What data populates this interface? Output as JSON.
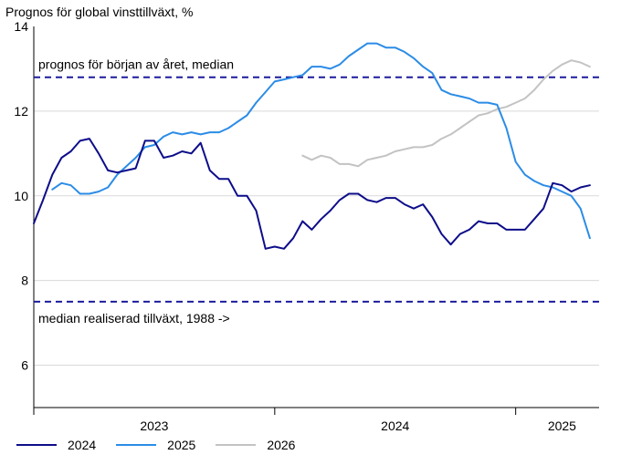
{
  "chart_data": {
    "type": "line",
    "title": "Prognos för global vinsttillväxt, %",
    "ylim": [
      5,
      14
    ],
    "yticks": [
      6,
      8,
      10,
      12,
      14
    ],
    "xlim": [
      0,
      30.5
    ],
    "x_category_labels": [
      "2023",
      "2024",
      "2025"
    ],
    "x_label_positions": [
      6.5,
      19.5,
      28.5
    ],
    "x_year_boundaries": [
      0,
      13,
      26
    ],
    "reference_lines": [
      {
        "name": "start-of-year-median",
        "value": 12.8,
        "label": "prognos för början av året, median",
        "color": "#1c1c9e"
      },
      {
        "name": "realized-median",
        "value": 7.5,
        "label": "median realiserad tillväxt, 1988 ->",
        "color": "#1c1c9e"
      }
    ],
    "series": [
      {
        "name": "2024",
        "color": "#0d0d8a",
        "x": [
          0,
          0.5,
          1,
          1.5,
          2,
          2.5,
          3,
          3.5,
          4,
          4.5,
          5,
          5.5,
          6,
          6.5,
          7,
          7.5,
          8,
          8.5,
          9,
          9.5,
          10,
          10.5,
          11,
          11.5,
          12,
          12.5,
          13,
          13.5,
          14,
          14.5,
          15,
          15.5,
          16,
          16.5,
          17,
          17.5,
          18,
          18.5,
          19,
          19.5,
          20,
          20.5,
          21,
          21.5,
          22,
          22.5,
          23,
          23.5,
          24,
          24.5,
          25,
          25.5,
          26,
          26.5,
          27,
          27.5,
          28,
          28.5,
          29,
          29.5,
          30
        ],
        "y": [
          9.35,
          9.9,
          10.5,
          10.9,
          11.05,
          11.3,
          11.35,
          11.0,
          10.6,
          10.55,
          10.6,
          10.65,
          11.3,
          11.3,
          10.9,
          10.95,
          11.05,
          11.0,
          11.25,
          10.6,
          10.4,
          10.4,
          10.0,
          10.0,
          9.65,
          8.75,
          8.8,
          8.75,
          9.0,
          9.4,
          9.2,
          9.45,
          9.65,
          9.9,
          10.05,
          10.05,
          9.9,
          9.85,
          9.95,
          9.95,
          9.8,
          9.7,
          9.8,
          9.5,
          9.1,
          8.85,
          9.1,
          9.2,
          9.4,
          9.35,
          9.35,
          9.2,
          9.2,
          9.2,
          9.45,
          9.7,
          10.3,
          10.25,
          10.1,
          10.2,
          10.25
        ]
      },
      {
        "name": "2025",
        "color": "#2b8ce6",
        "x": [
          1,
          1.5,
          2,
          2.5,
          3,
          3.5,
          4,
          4.5,
          5,
          5.5,
          6,
          6.5,
          7,
          7.5,
          8,
          8.5,
          9,
          9.5,
          10,
          10.5,
          11,
          11.5,
          12,
          12.5,
          13,
          13.5,
          14,
          14.5,
          15,
          15.5,
          16,
          16.5,
          17,
          17.5,
          18,
          18.5,
          19,
          19.5,
          20,
          20.5,
          21,
          21.5,
          22,
          22.5,
          23,
          23.5,
          24,
          24.5,
          25,
          25.5,
          26,
          26.5,
          27,
          27.5,
          28,
          28.5,
          29,
          29.5,
          30
        ],
        "y": [
          10.15,
          10.3,
          10.25,
          10.05,
          10.05,
          10.1,
          10.2,
          10.5,
          10.7,
          10.9,
          11.15,
          11.2,
          11.4,
          11.5,
          11.45,
          11.5,
          11.45,
          11.5,
          11.5,
          11.6,
          11.75,
          11.9,
          12.2,
          12.45,
          12.7,
          12.75,
          12.8,
          12.85,
          13.05,
          13.05,
          13.0,
          13.1,
          13.3,
          13.45,
          13.6,
          13.6,
          13.5,
          13.5,
          13.4,
          13.25,
          13.05,
          12.9,
          12.5,
          12.4,
          12.35,
          12.3,
          12.2,
          12.2,
          12.15,
          11.6,
          10.8,
          10.5,
          10.35,
          10.25,
          10.2,
          10.1,
          10.0,
          9.7,
          9.0
        ]
      },
      {
        "name": "2026",
        "color": "#c3c3c3",
        "x": [
          14.5,
          15,
          15.5,
          16,
          16.5,
          17,
          17.5,
          18,
          18.5,
          19,
          19.5,
          20,
          20.5,
          21,
          21.5,
          22,
          22.5,
          23,
          23.5,
          24,
          24.5,
          25,
          25.5,
          26,
          26.5,
          27,
          27.5,
          28,
          28.5,
          29,
          29.5,
          30
        ],
        "y": [
          10.95,
          10.85,
          10.95,
          10.9,
          10.75,
          10.75,
          10.7,
          10.85,
          10.9,
          10.95,
          11.05,
          11.1,
          11.15,
          11.15,
          11.2,
          11.35,
          11.45,
          11.6,
          11.75,
          11.9,
          11.95,
          12.05,
          12.1,
          12.2,
          12.3,
          12.5,
          12.75,
          12.95,
          13.1,
          13.2,
          13.15,
          13.05
        ]
      }
    ]
  }
}
